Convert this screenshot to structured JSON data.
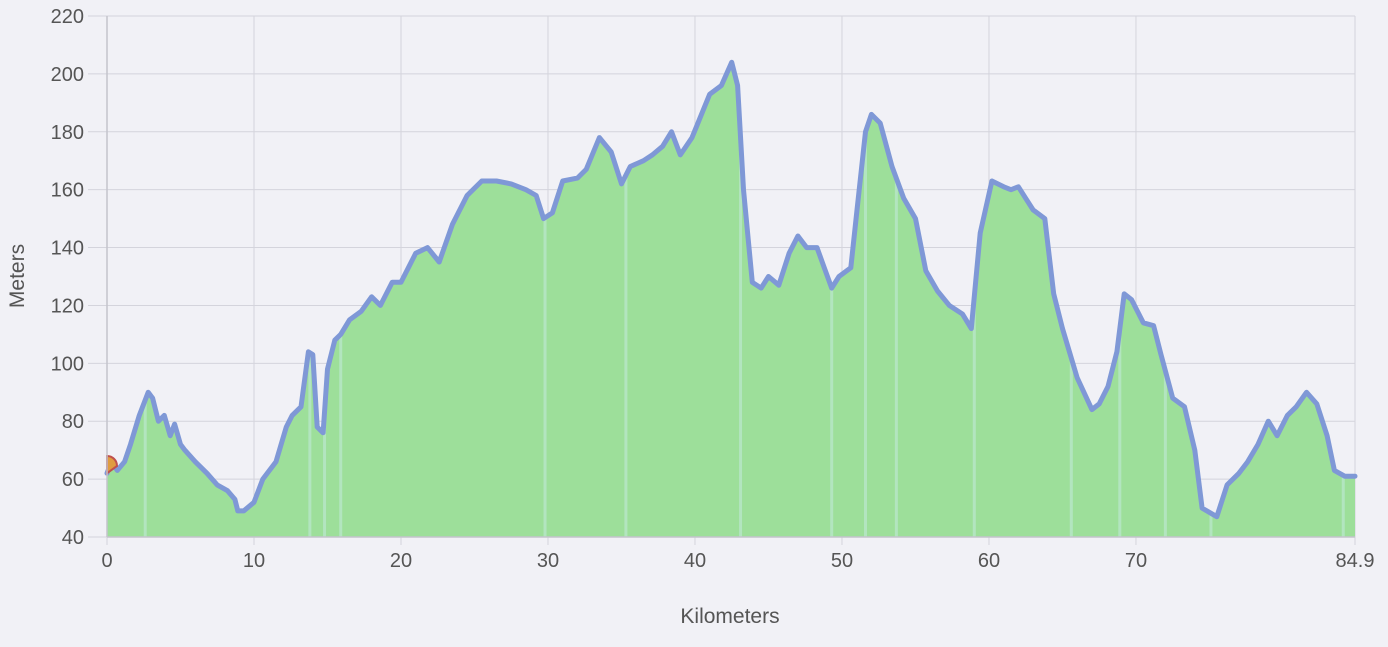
{
  "chart_data": {
    "type": "area",
    "title": "",
    "xlabel": "Kilometers",
    "ylabel": "Meters",
    "xlim": [
      0,
      84.9
    ],
    "ylim": [
      40,
      220
    ],
    "grid": true,
    "x_ticks": [
      "0",
      "10",
      "20",
      "30",
      "40",
      "50",
      "60",
      "70",
      "84.9"
    ],
    "x_tick_values": [
      0,
      10,
      20,
      30,
      40,
      50,
      60,
      70,
      84.9
    ],
    "y_ticks": [
      "40",
      "60",
      "80",
      "100",
      "120",
      "140",
      "160",
      "180",
      "200",
      "220"
    ],
    "y_tick_values": [
      40,
      60,
      80,
      100,
      120,
      140,
      160,
      180,
      200,
      220
    ],
    "colors": {
      "fill": "#9ddf9a",
      "line": "#7f98d6",
      "grid": "#d4d4dc",
      "axis": "#c4c4cc",
      "start_marker": "#e09c40"
    },
    "series": [
      {
        "x": [
          0,
          0.3,
          0.7,
          1.2,
          1.6,
          2.2,
          2.8,
          3.1,
          3.5,
          3.9,
          4.3,
          4.6,
          5.0,
          5.3,
          6.0,
          6.8,
          7.5,
          8.2,
          8.7,
          8.9,
          9.3,
          10.0,
          10.6,
          11.5,
          12.2,
          12.6,
          13.2,
          13.7,
          14.0,
          14.3,
          14.7,
          15.0,
          15.5,
          15.9,
          16.5,
          17.3,
          18.0,
          18.6,
          19.4,
          20.0,
          21.0,
          21.8,
          22.6,
          23.5,
          24.5,
          25.5,
          26.5,
          27.5,
          28.5,
          29.2,
          29.7,
          30.3,
          31.0,
          32.0,
          32.6,
          33.5,
          34.3,
          35.0,
          35.6,
          36.5,
          37.1,
          37.8,
          38.4,
          39.0,
          39.8,
          41.0,
          41.8,
          42.5,
          42.9,
          43.3,
          43.9,
          44.5,
          45.0,
          45.7,
          46.4,
          47.0,
          47.6,
          48.3,
          48.8,
          49.3,
          49.8,
          50.6,
          51.0,
          51.6,
          52.0,
          52.6,
          53.4,
          54.2,
          55.0,
          55.7,
          56.5,
          57.3,
          58.2,
          58.8,
          59.4,
          60.2,
          61.0,
          61.5,
          62.0,
          62.5,
          63.0,
          63.8,
          64.4,
          65.0,
          66.0,
          67.0,
          67.5,
          68.1,
          68.7,
          69.2,
          69.7,
          70.5,
          71.2,
          71.7,
          72.5,
          73.3,
          74.0,
          74.5,
          75.5,
          76.2,
          77.0,
          77.6,
          78.3,
          79.0,
          79.6,
          80.3,
          80.9,
          81.6,
          82.3,
          83.0,
          83.5,
          84.2,
          84.9
        ],
        "values": [
          62,
          66,
          63,
          66,
          72,
          82,
          90,
          88,
          80,
          82,
          75,
          79,
          72,
          70,
          66,
          62,
          58,
          56,
          53,
          49,
          49,
          52,
          60,
          66,
          78,
          82,
          85,
          104,
          103,
          78,
          76,
          98,
          108,
          110,
          115,
          118,
          123,
          120,
          128,
          128,
          138,
          140,
          135,
          148,
          158,
          163,
          163,
          162,
          160,
          158,
          150,
          152,
          163,
          164,
          167,
          178,
          173,
          162,
          168,
          170,
          172,
          175,
          180,
          172,
          178,
          193,
          196,
          204,
          196,
          160,
          128,
          126,
          130,
          127,
          138,
          144,
          140,
          140,
          133,
          126,
          130,
          133,
          152,
          180,
          186,
          183,
          168,
          157,
          150,
          132,
          125,
          120,
          117,
          112,
          145,
          163,
          161,
          160,
          161,
          157,
          153,
          150,
          124,
          112,
          95,
          84,
          86,
          92,
          104,
          124,
          122,
          114,
          113,
          103,
          88,
          85,
          70,
          50,
          47,
          58,
          62,
          66,
          72,
          80,
          75,
          82,
          85,
          90,
          86,
          75,
          63,
          61,
          61
        ]
      }
    ]
  }
}
